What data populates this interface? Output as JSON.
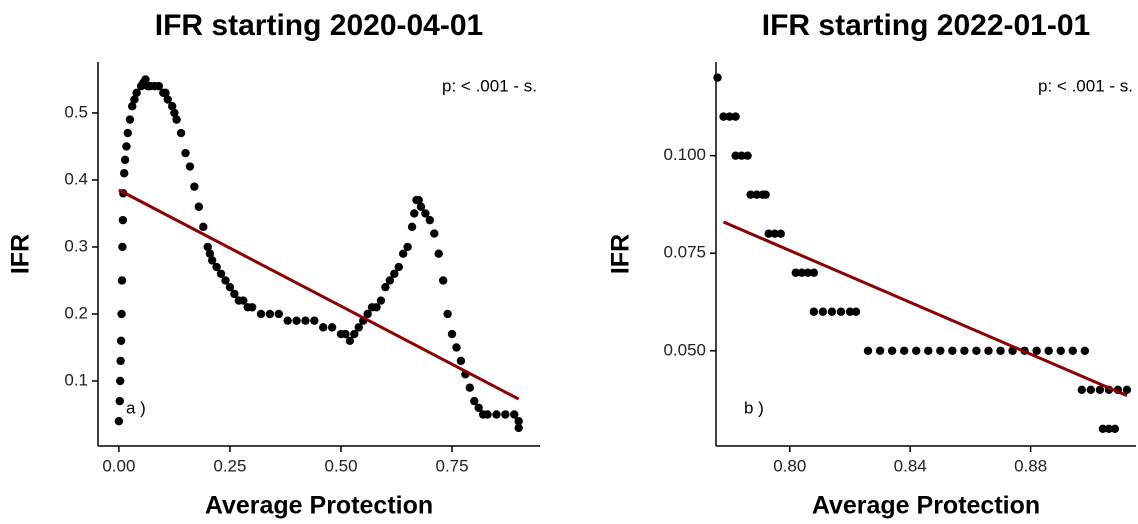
{
  "chart_data": [
    {
      "type": "scatter",
      "title": "IFR starting 2020-04-01",
      "xlabel": "Average Protection",
      "ylabel": "IFR",
      "annotation": "p: < .001 - s.",
      "panel_label": "a )",
      "color": "#000000",
      "xlim": [
        -0.047,
        0.948
      ],
      "ylim": [
        0.003,
        0.576
      ],
      "xticks": [
        {
          "value": 0,
          "label": "0.00"
        },
        {
          "value": 0.25,
          "label": "0.25"
        },
        {
          "value": 0.5,
          "label": "0.50"
        },
        {
          "value": 0.75,
          "label": "0.75"
        }
      ],
      "yticks": [
        0.1,
        0.2,
        0.3,
        0.4,
        0.5
      ],
      "x": [
        0,
        0.002,
        0.003,
        0.004,
        0.005,
        0.006,
        0.007,
        0.008,
        0.009,
        0.01,
        0.012,
        0.014,
        0.017,
        0.02,
        0.025,
        0.03,
        0.035,
        0.04,
        0.05,
        0.055,
        0.06,
        0.065,
        0.07,
        0.08,
        0.09,
        0.1,
        0.105,
        0.11,
        0.12,
        0.125,
        0.13,
        0.14,
        0.15,
        0.16,
        0.17,
        0.18,
        0.19,
        0.2,
        0.205,
        0.21,
        0.22,
        0.23,
        0.24,
        0.25,
        0.26,
        0.27,
        0.28,
        0.29,
        0.3,
        0.32,
        0.34,
        0.36,
        0.38,
        0.4,
        0.42,
        0.44,
        0.46,
        0.48,
        0.5,
        0.51,
        0.52,
        0.53,
        0.54,
        0.55,
        0.56,
        0.57,
        0.58,
        0.59,
        0.6,
        0.61,
        0.62,
        0.63,
        0.64,
        0.65,
        0.66,
        0.665,
        0.67,
        0.675,
        0.68,
        0.69,
        0.7,
        0.71,
        0.72,
        0.73,
        0.74,
        0.75,
        0.76,
        0.77,
        0.78,
        0.79,
        0.8,
        0.81,
        0.82,
        0.83,
        0.85,
        0.87,
        0.89,
        0.9,
        0.9
      ],
      "y": [
        0.04,
        0.07,
        0.1,
        0.13,
        0.16,
        0.2,
        0.25,
        0.3,
        0.34,
        0.38,
        0.41,
        0.43,
        0.45,
        0.47,
        0.49,
        0.51,
        0.52,
        0.53,
        0.54,
        0.545,
        0.55,
        0.54,
        0.54,
        0.54,
        0.54,
        0.53,
        0.53,
        0.52,
        0.51,
        0.5,
        0.49,
        0.47,
        0.44,
        0.42,
        0.39,
        0.36,
        0.33,
        0.3,
        0.29,
        0.28,
        0.27,
        0.26,
        0.25,
        0.24,
        0.23,
        0.22,
        0.22,
        0.21,
        0.21,
        0.2,
        0.2,
        0.2,
        0.19,
        0.19,
        0.19,
        0.19,
        0.18,
        0.18,
        0.17,
        0.17,
        0.16,
        0.17,
        0.18,
        0.19,
        0.2,
        0.21,
        0.21,
        0.22,
        0.24,
        0.25,
        0.26,
        0.27,
        0.29,
        0.3,
        0.33,
        0.35,
        0.37,
        0.37,
        0.36,
        0.35,
        0.34,
        0.32,
        0.29,
        0.25,
        0.2,
        0.17,
        0.15,
        0.13,
        0.11,
        0.09,
        0.07,
        0.06,
        0.05,
        0.05,
        0.05,
        0.05,
        0.05,
        0.04,
        0.03
      ],
      "fit": {
        "color": "#8b0000",
        "x": [
          0,
          0.9
        ],
        "y": [
          0.385,
          0.073
        ]
      }
    },
    {
      "type": "scatter",
      "title": "IFR starting 2022-01-01",
      "xlabel": "Average Protection",
      "ylabel": "IFR",
      "annotation": "p: < .001 - s.",
      "panel_label": "b )",
      "color": "#000000",
      "xlim": [
        0.7755,
        0.915
      ],
      "ylim": [
        0.0256,
        0.124
      ],
      "xticks": [
        {
          "value": 0.8,
          "label": "0.80"
        },
        0.84,
        0.88
      ],
      "yticks": [
        {
          "value": 0.05,
          "label": "0.050"
        },
        0.075,
        {
          "value": 0.1,
          "label": "0.100"
        }
      ],
      "x": [
        0.776,
        0.778,
        0.78,
        0.782,
        0.782,
        0.784,
        0.786,
        0.787,
        0.789,
        0.791,
        0.792,
        0.793,
        0.795,
        0.797,
        0.802,
        0.804,
        0.806,
        0.808,
        0.808,
        0.811,
        0.814,
        0.817,
        0.82,
        0.822,
        0.826,
        0.83,
        0.834,
        0.838,
        0.842,
        0.846,
        0.85,
        0.854,
        0.858,
        0.862,
        0.866,
        0.87,
        0.874,
        0.878,
        0.882,
        0.886,
        0.89,
        0.894,
        0.898,
        0.897,
        0.9,
        0.903,
        0.906,
        0.909,
        0.912,
        0.904,
        0.906,
        0.908
      ],
      "y": [
        0.12,
        0.11,
        0.11,
        0.11,
        0.1,
        0.1,
        0.1,
        0.09,
        0.09,
        0.09,
        0.09,
        0.08,
        0.08,
        0.08,
        0.07,
        0.07,
        0.07,
        0.07,
        0.06,
        0.06,
        0.06,
        0.06,
        0.06,
        0.06,
        0.05,
        0.05,
        0.05,
        0.05,
        0.05,
        0.05,
        0.05,
        0.05,
        0.05,
        0.05,
        0.05,
        0.05,
        0.05,
        0.05,
        0.05,
        0.05,
        0.05,
        0.05,
        0.05,
        0.04,
        0.04,
        0.04,
        0.04,
        0.04,
        0.04,
        0.03,
        0.03,
        0.03
      ],
      "fit": {
        "color": "#8b0000",
        "x": [
          0.778,
          0.912
        ],
        "y": [
          0.083,
          0.0385
        ]
      }
    }
  ]
}
